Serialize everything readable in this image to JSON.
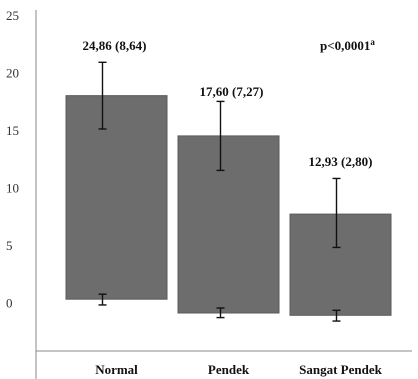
{
  "chart_data": {
    "type": "bar",
    "categories": [
      "Normal",
      "Pendek",
      "Sangat Pendek"
    ],
    "y_ticks": [
      "25",
      "20",
      "15",
      "10",
      "5",
      "0"
    ],
    "bar_low": [
      0.2,
      -1.0,
      -1.2
    ],
    "bar_high": [
      17.9,
      14.4,
      7.6
    ],
    "error_low": [
      -0.3,
      -1.4,
      -1.7
    ],
    "error_high": [
      20.8,
      17.4,
      10.7
    ],
    "center": [
      15.0,
      11.4,
      4.7
    ],
    "data_labels": [
      "24,86 (8,64)",
      "17,60 (7,27)",
      "12,93 (2,80)"
    ],
    "annotation": {
      "text": "p<0,0001",
      "superscript": "a"
    },
    "ylim": [
      -4,
      25
    ],
    "colors": {
      "bar": "#6d6d6d",
      "axis": "#888888",
      "error": "#111111"
    }
  }
}
